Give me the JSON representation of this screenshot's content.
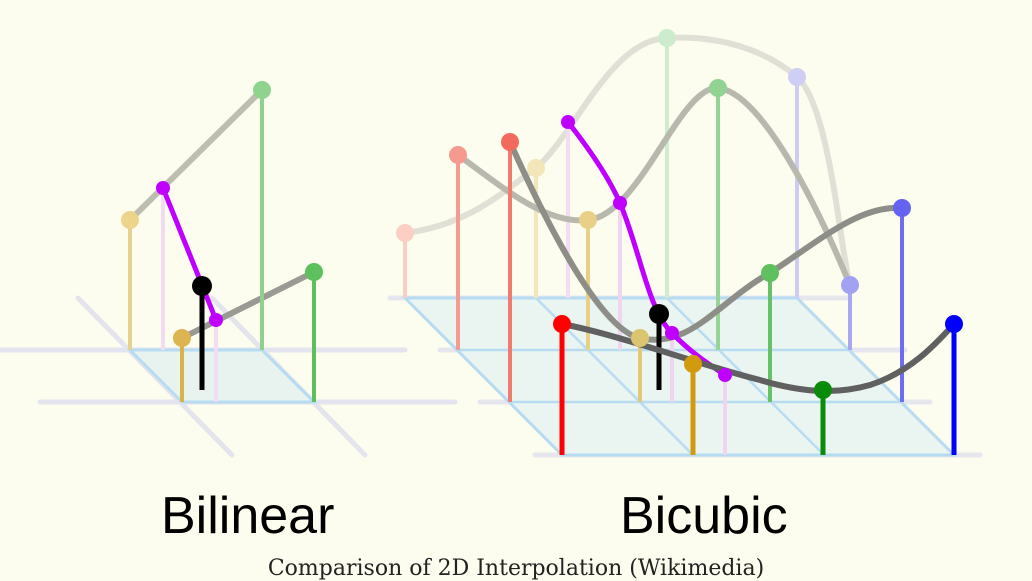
{
  "labels": {
    "bilinear": "Bilinear",
    "bicubic": "Bicubic"
  },
  "caption": "Comparison of 2D Interpolation (Wikimedia)",
  "colors": {
    "background": "#fdfdef",
    "red": "#ff0000",
    "green": "#0a8c0a",
    "blue": "#0000ff",
    "gold": "#d29b0f",
    "interpolant": "#c000ff",
    "result": "#000000",
    "curve": "#707070",
    "grid": "#aeddf5"
  },
  "icons": [
    "grid-plane",
    "sample-stem",
    "interpolation-curve",
    "result-point"
  ]
}
